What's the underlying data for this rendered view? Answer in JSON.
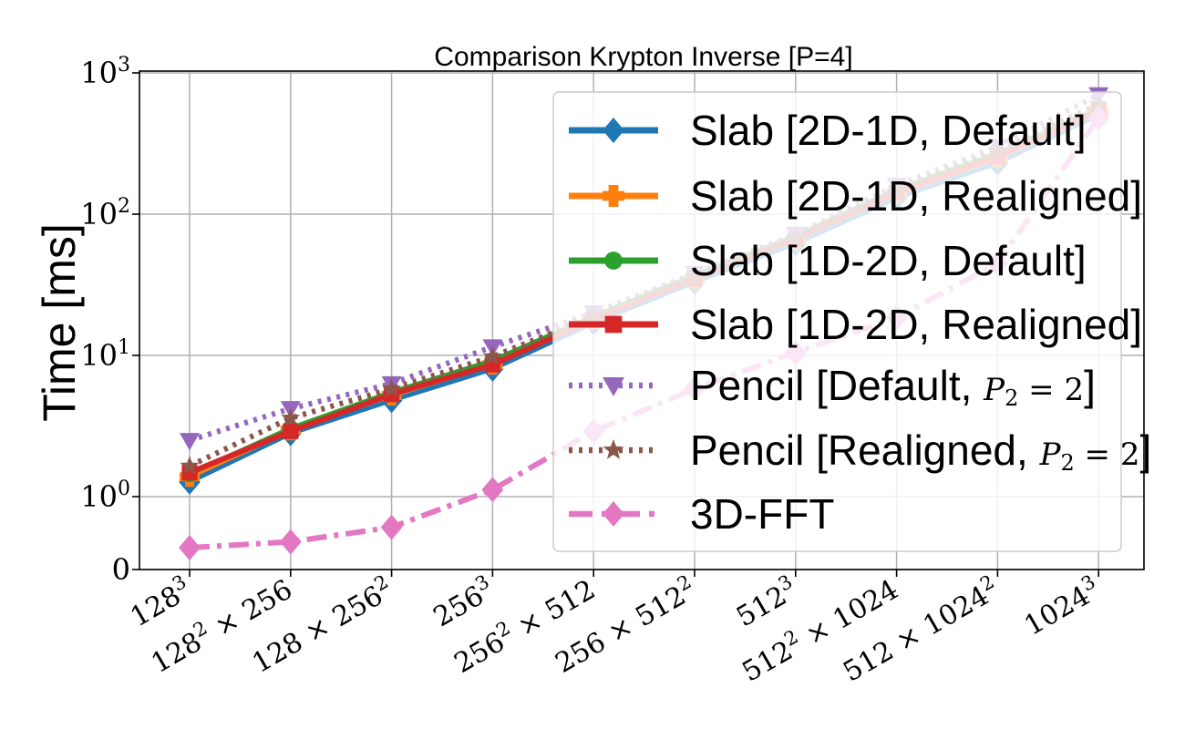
{
  "chart_data": {
    "type": "line",
    "title": "Comparison Krypton Inverse [P=4]",
    "ylabel": "Time [ms]",
    "xlabel": "",
    "yscale": "symlog",
    "ylim": [
      0,
      1000
    ],
    "grid": true,
    "legend_position": "upper-right",
    "categories": [
      "128^3",
      "128^2 × 256",
      "128 × 256^2",
      "256^3",
      "256^2 × 512",
      "256 × 512^2",
      "512^3",
      "512^2 × 1024",
      "512 × 1024^2",
      "1024^3"
    ],
    "ytick_labels": [
      {
        "value": 0,
        "label": "0"
      },
      {
        "value": 1,
        "base": "10",
        "exp": "0"
      },
      {
        "value": 10,
        "base": "10",
        "exp": "1"
      },
      {
        "value": 100,
        "base": "10",
        "exp": "2"
      },
      {
        "value": 1000,
        "base": "10",
        "exp": "3"
      }
    ],
    "series": [
      {
        "name": "Slab [2D-1D, Default]",
        "color": "#1f77b4",
        "marker": "diamond",
        "dash": "solid",
        "values": [
          1.27,
          2.8,
          4.8,
          8.0,
          17,
          33,
          62,
          130,
          230,
          505
        ]
      },
      {
        "name": "Slab [2D-1D, Realigned]",
        "color": "#ff7f0e",
        "marker": "plus-filled",
        "dash": "solid",
        "values": [
          1.38,
          2.95,
          5.2,
          8.6,
          18,
          35,
          66,
          140,
          250,
          530
        ]
      },
      {
        "name": "Slab [1D-2D, Default]",
        "color": "#2ca02c",
        "marker": "circle",
        "dash": "solid",
        "values": [
          1.45,
          3.05,
          5.5,
          9.2,
          19,
          37,
          70,
          150,
          270,
          560
        ]
      },
      {
        "name": "Slab [1D-2D, Realigned]",
        "color": "#d62728",
        "marker": "square",
        "dash": "solid",
        "values": [
          1.48,
          2.9,
          5.3,
          8.6,
          18,
          35,
          67,
          142,
          255,
          540
        ]
      },
      {
        "name": "Pencil [Default, P_2 = 2]",
        "color": "#9467bd",
        "marker": "triangle-down",
        "dash": "dotted",
        "values": [
          2.5,
          4.2,
          6.3,
          11.5,
          20,
          38,
          72,
          160,
          300,
          700
        ]
      },
      {
        "name": "Pencil [Realigned, P_2 = 2]",
        "color": "#8c564b",
        "marker": "star",
        "dash": "dotted",
        "values": [
          1.65,
          3.6,
          5.8,
          9.8,
          19,
          36,
          68,
          150,
          280,
          600
        ]
      },
      {
        "name": "3D-FFT",
        "color": "#e377c2",
        "marker": "diamond",
        "dash": "dashdot",
        "values": [
          0.3,
          0.38,
          0.58,
          1.12,
          2.9,
          5.8,
          10.5,
          18.5,
          45,
          480
        ]
      }
    ],
    "legend_entries": [
      {
        "text": "Slab [2D-1D, Default]"
      },
      {
        "text": "Slab [2D-1D, Realigned]"
      },
      {
        "text": "Slab [1D-2D, Default]"
      },
      {
        "text": "Slab [1D-2D, Realigned]"
      },
      {
        "text": "Pencil [Default, ",
        "math": "P",
        "sub": "2",
        "math_tail": " = 2",
        "close": "]"
      },
      {
        "text": "Pencil [Realigned, ",
        "math": "P",
        "sub": "2",
        "math_tail": " = 2",
        "close": "]"
      },
      {
        "text": "3D-FFT"
      }
    ],
    "xtick_labels": [
      {
        "parts": [
          [
            "128",
            ""
          ],
          [
            "3",
            "sup"
          ]
        ]
      },
      {
        "parts": [
          [
            "128",
            ""
          ],
          [
            "2",
            "sup"
          ],
          [
            " × 256",
            ""
          ]
        ]
      },
      {
        "parts": [
          [
            "128 × 256",
            ""
          ],
          [
            "2",
            "sup"
          ]
        ]
      },
      {
        "parts": [
          [
            "256",
            ""
          ],
          [
            "3",
            "sup"
          ]
        ]
      },
      {
        "parts": [
          [
            "256",
            ""
          ],
          [
            "2",
            "sup"
          ],
          [
            " × 512",
            ""
          ]
        ]
      },
      {
        "parts": [
          [
            "256 × 512",
            ""
          ],
          [
            "2",
            "sup"
          ]
        ]
      },
      {
        "parts": [
          [
            "512",
            ""
          ],
          [
            "3",
            "sup"
          ]
        ]
      },
      {
        "parts": [
          [
            "512",
            ""
          ],
          [
            "2",
            "sup"
          ],
          [
            " × 1024",
            ""
          ]
        ]
      },
      {
        "parts": [
          [
            "512 × 1024",
            ""
          ],
          [
            "2",
            "sup"
          ]
        ]
      },
      {
        "parts": [
          [
            "1024",
            ""
          ],
          [
            "3",
            "sup"
          ]
        ]
      }
    ]
  }
}
